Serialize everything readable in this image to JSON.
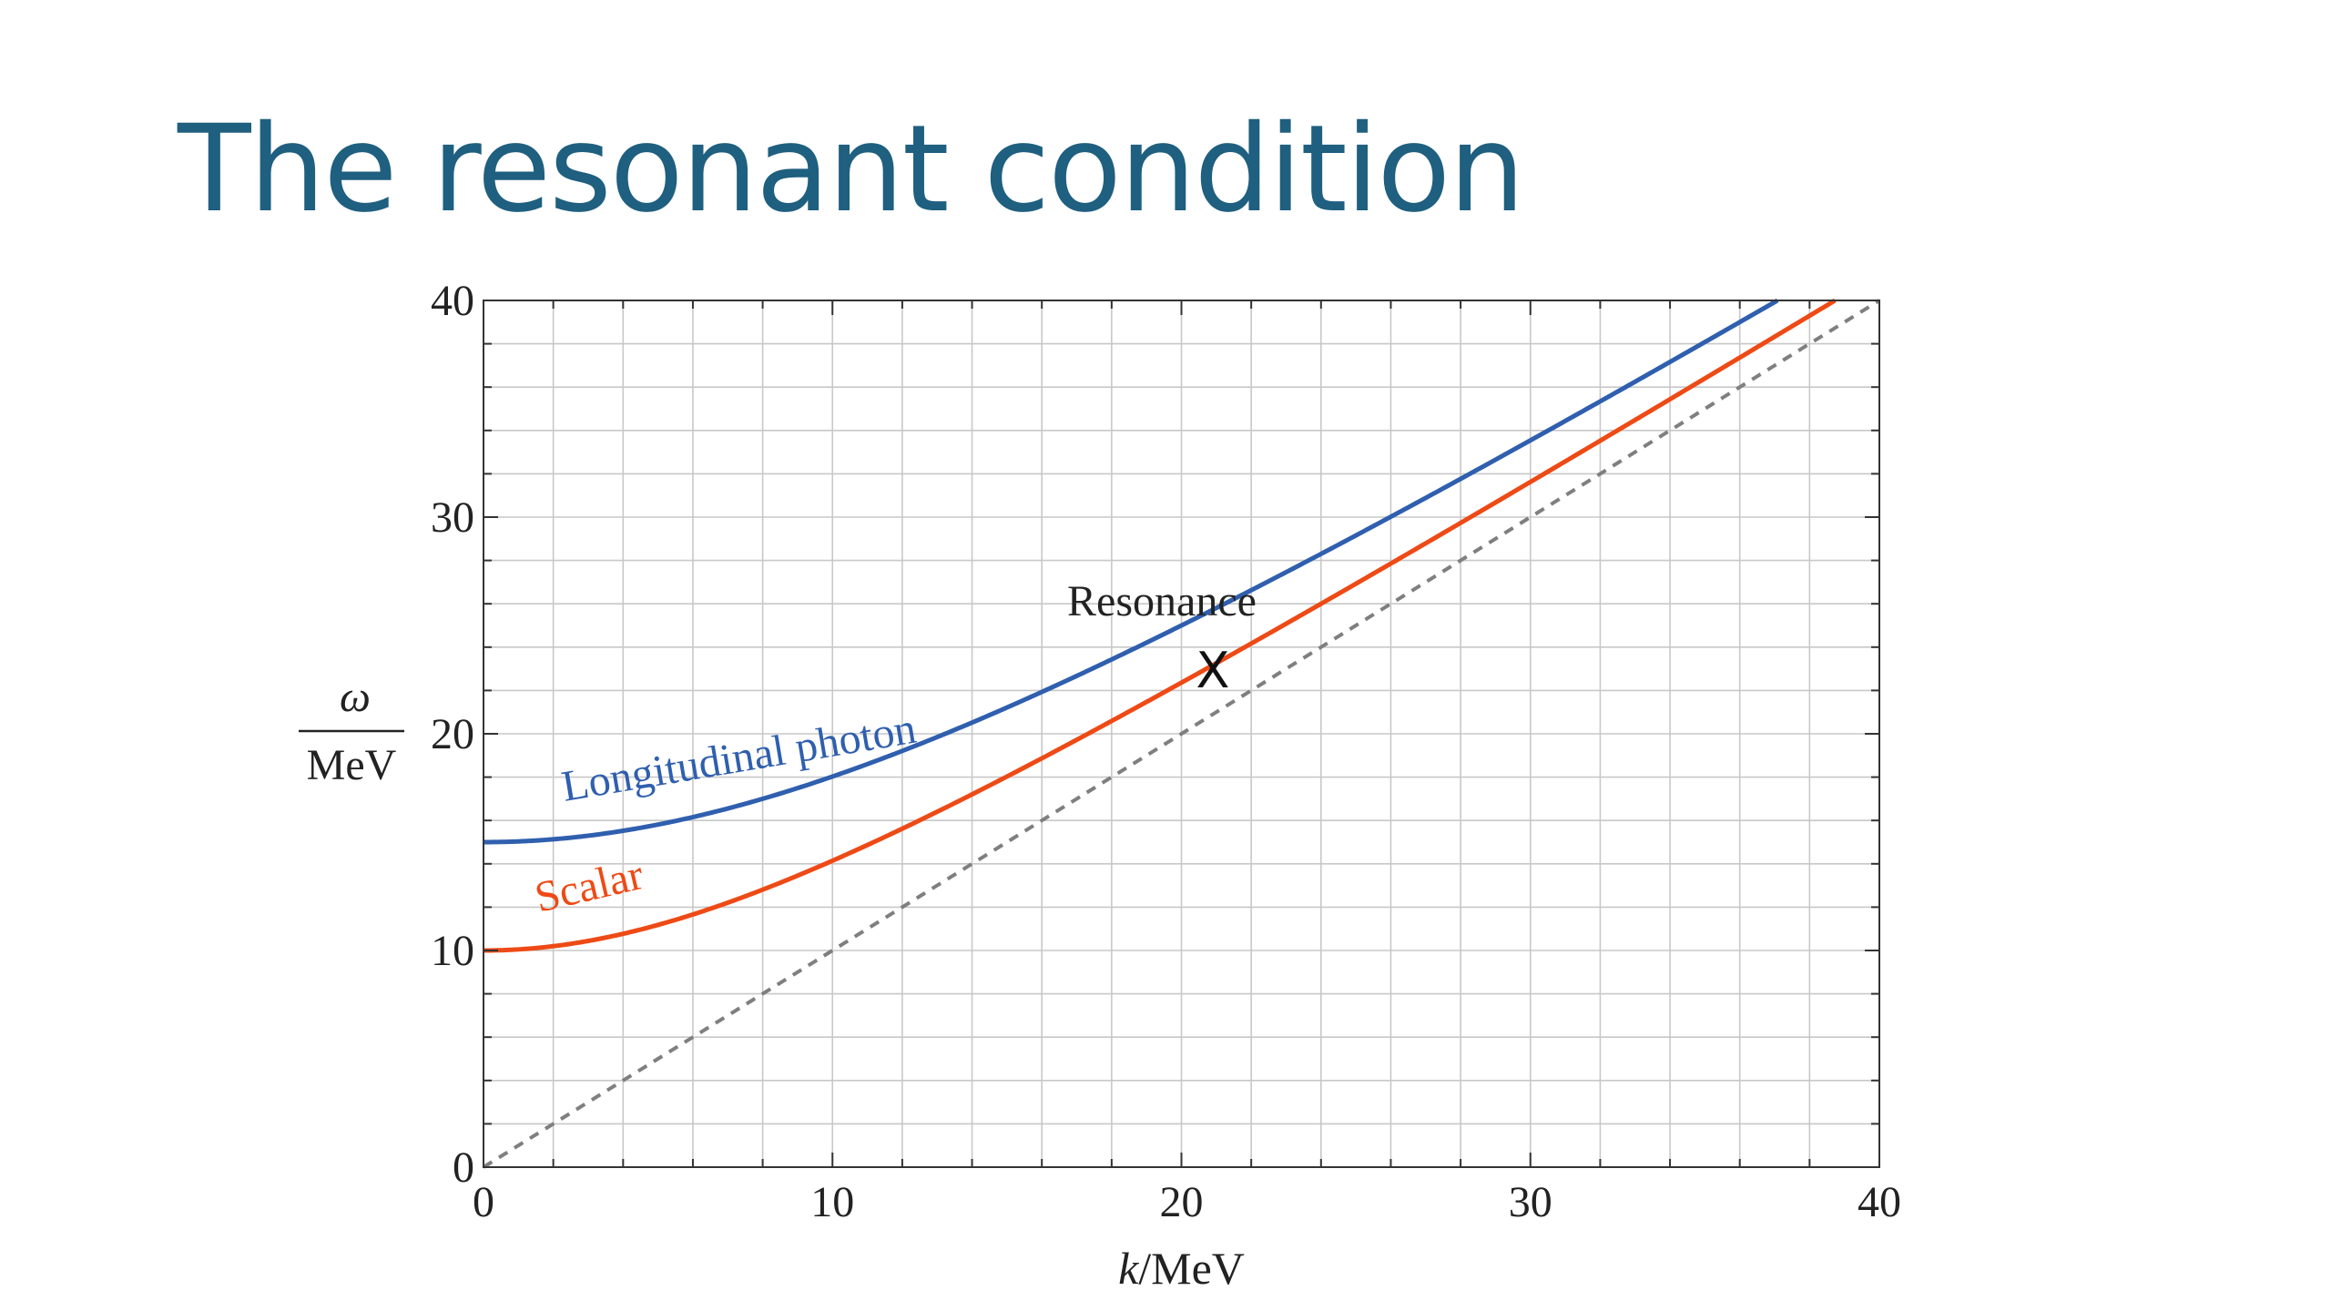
{
  "slide": {
    "title": "The resonant condition",
    "title_color": "#1f5f7f"
  },
  "chart_data": {
    "type": "line",
    "title": "",
    "xlabel_italic": "k",
    "xlabel_rest": "/MeV",
    "ylabel_numerator": "ω",
    "ylabel_denominator": "MeV",
    "xlim": [
      0,
      40
    ],
    "ylim": [
      0,
      40
    ],
    "x_ticks": [
      0,
      10,
      20,
      30,
      40
    ],
    "y_ticks": [
      0,
      10,
      20,
      30,
      40
    ],
    "x_tick_labels": [
      "0",
      "10",
      "20",
      "30",
      "40"
    ],
    "y_tick_labels": [
      "0",
      "10",
      "20",
      "30",
      "40"
    ],
    "x_minor_step": 2,
    "y_minor_step": 2,
    "grid": true,
    "series": [
      {
        "name": "Longitudinal photon",
        "label": "Longitudinal photon",
        "color": "#2f5fae",
        "style": "solid",
        "formula": "omega = sqrt(k^2 + m^2)",
        "mass": 15
      },
      {
        "name": "Scalar",
        "label": "Scalar",
        "color": "#ee4a16",
        "style": "solid",
        "formula": "omega = sqrt(k^2 + m^2)",
        "mass": 10
      },
      {
        "name": "Light cone",
        "label": "",
        "color": "#7f7f7f",
        "style": "dashed",
        "formula": "omega = k",
        "mass": 0
      }
    ],
    "annotations": [
      {
        "text": "Resonance",
        "marker": "X",
        "x": 20.9,
        "y": 22.9
      }
    ],
    "text_color": "#222222",
    "grid_color": "#c8c8c8",
    "frame_color": "#333333"
  }
}
